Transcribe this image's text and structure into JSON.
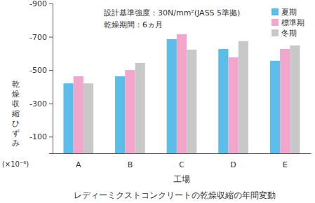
{
  "chart_data": {
    "type": "bar",
    "title": "レディーミクストコンクリートの乾燥収縮の年間変動",
    "x_label": "工場",
    "y_label": "乾燥収縮ひずみ",
    "annotations": [
      "設計基準強度：30N/mm²(JASS 5準拠)",
      "乾燥期間：6ヵ月",
      "(×10⁻⁶)"
    ],
    "categories": [
      "A",
      "B",
      "C",
      "D",
      "E"
    ],
    "series": [
      {
        "name": "夏期",
        "color": "#5bbde8",
        "values": [
          -420,
          -463,
          -686,
          -627,
          -556
        ]
      },
      {
        "name": "標準期",
        "color": "#f2a6cc",
        "values": [
          -463,
          -500,
          -716,
          -577,
          -627
        ]
      },
      {
        "name": "冬期",
        "color": "#c8c8c8",
        "values": [
          -420,
          -543,
          -623,
          -674,
          -648
        ]
      }
    ],
    "ylim": [
      0,
      -900
    ],
    "yticks": [
      -900,
      -700,
      -500,
      -300,
      -100
    ],
    "grid": false,
    "legend": "upper right"
  }
}
